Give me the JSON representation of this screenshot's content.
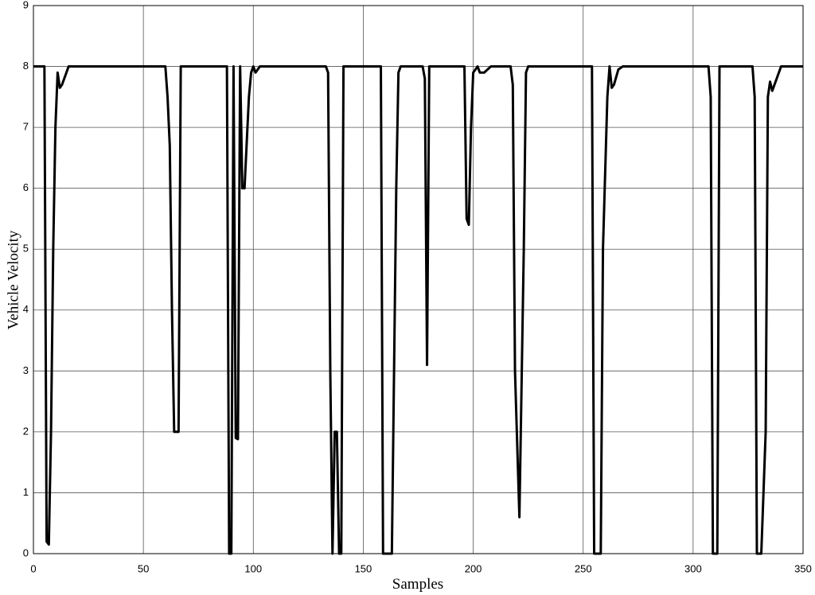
{
  "chart_data": {
    "type": "line",
    "x_label": "Samples",
    "y_label": "Vehicle Velocity",
    "x": [
      0,
      5,
      6,
      7,
      8,
      9,
      10,
      11,
      12,
      13,
      15,
      16,
      60,
      61,
      62,
      63,
      64,
      66,
      67,
      88,
      89,
      90,
      91,
      92,
      93,
      94,
      95,
      96,
      98,
      99,
      100,
      101,
      103,
      133,
      134,
      135,
      136,
      137,
      138,
      139,
      140,
      141,
      158,
      159,
      163,
      165,
      166,
      167,
      177,
      178,
      179,
      180,
      196,
      197,
      198,
      199,
      200,
      202,
      203,
      205,
      208,
      217,
      218,
      219,
      221,
      223,
      224,
      225,
      254,
      255,
      258,
      259,
      261,
      262,
      263,
      264,
      266,
      268,
      307,
      308,
      309,
      311,
      312,
      327,
      328,
      329,
      331,
      333,
      334,
      335,
      336,
      338,
      340,
      350
    ],
    "series": [
      {
        "name": "Vehicle Velocity",
        "color": "#000000",
        "values": [
          8,
          8,
          0.2,
          0.15,
          2,
          5,
          7,
          7.9,
          7.65,
          7.7,
          7.9,
          8,
          8,
          7.5,
          6.7,
          4,
          2,
          2,
          8,
          8,
          0,
          0,
          8,
          1.9,
          1.88,
          8,
          6,
          6,
          7.5,
          7.9,
          8,
          7.9,
          8,
          8,
          7.9,
          3,
          0,
          2,
          2,
          0,
          0,
          8,
          8,
          0,
          0,
          6,
          7.9,
          8,
          8,
          7.8,
          3.1,
          8,
          8,
          5.5,
          5.4,
          7,
          7.9,
          8,
          7.9,
          7.9,
          8,
          8,
          7.7,
          3,
          0.6,
          5,
          7.9,
          8,
          8,
          0,
          0,
          5,
          7.5,
          8,
          7.65,
          7.7,
          7.95,
          8,
          8,
          7.5,
          0,
          0,
          8,
          8,
          7.5,
          0,
          0,
          2,
          7.5,
          7.75,
          7.6,
          7.8,
          8,
          8
        ]
      }
    ],
    "xlim": [
      0,
      350
    ],
    "ylim": [
      0,
      9
    ],
    "xticks": [
      0,
      50,
      100,
      150,
      200,
      250,
      300,
      350
    ],
    "yticks": [
      0,
      1,
      2,
      3,
      4,
      5,
      6,
      7,
      8,
      9
    ],
    "grid": true
  }
}
